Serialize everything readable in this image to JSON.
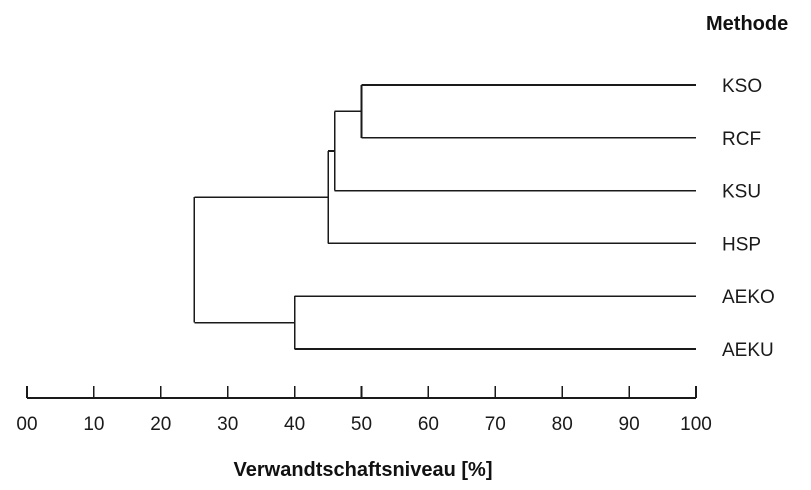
{
  "legend_title": "Methode",
  "axis": {
    "title": "Verwandtschaftsniveau [%]",
    "min": 0,
    "max": 100,
    "ticks": [
      {
        "value": 0,
        "label": "00"
      },
      {
        "value": 10,
        "label": "10"
      },
      {
        "value": 20,
        "label": "20"
      },
      {
        "value": 30,
        "label": "30"
      },
      {
        "value": 40,
        "label": "40"
      },
      {
        "value": 50,
        "label": "50"
      },
      {
        "value": 60,
        "label": "60"
      },
      {
        "value": 70,
        "label": "70"
      },
      {
        "value": 80,
        "label": "80"
      },
      {
        "value": 90,
        "label": "90"
      },
      {
        "value": 100,
        "label": "100"
      }
    ]
  },
  "leaves": [
    "KSO",
    "RCF",
    "KSU",
    "HSP",
    "AEKO",
    "AEKU"
  ],
  "clusters": [
    {
      "members": [
        "KSO",
        "RCF"
      ],
      "level": 50
    },
    {
      "members": [
        "KSO",
        "RCF",
        "KSU"
      ],
      "level": 46
    },
    {
      "members": [
        "KSO",
        "RCF",
        "KSU",
        "HSP"
      ],
      "level": 45
    },
    {
      "members": [
        "AEKO",
        "AEKU"
      ],
      "level": 40
    },
    {
      "members": [
        "KSO",
        "RCF",
        "KSU",
        "HSP",
        "AEKO",
        "AEKU"
      ],
      "level": 25
    }
  ]
}
